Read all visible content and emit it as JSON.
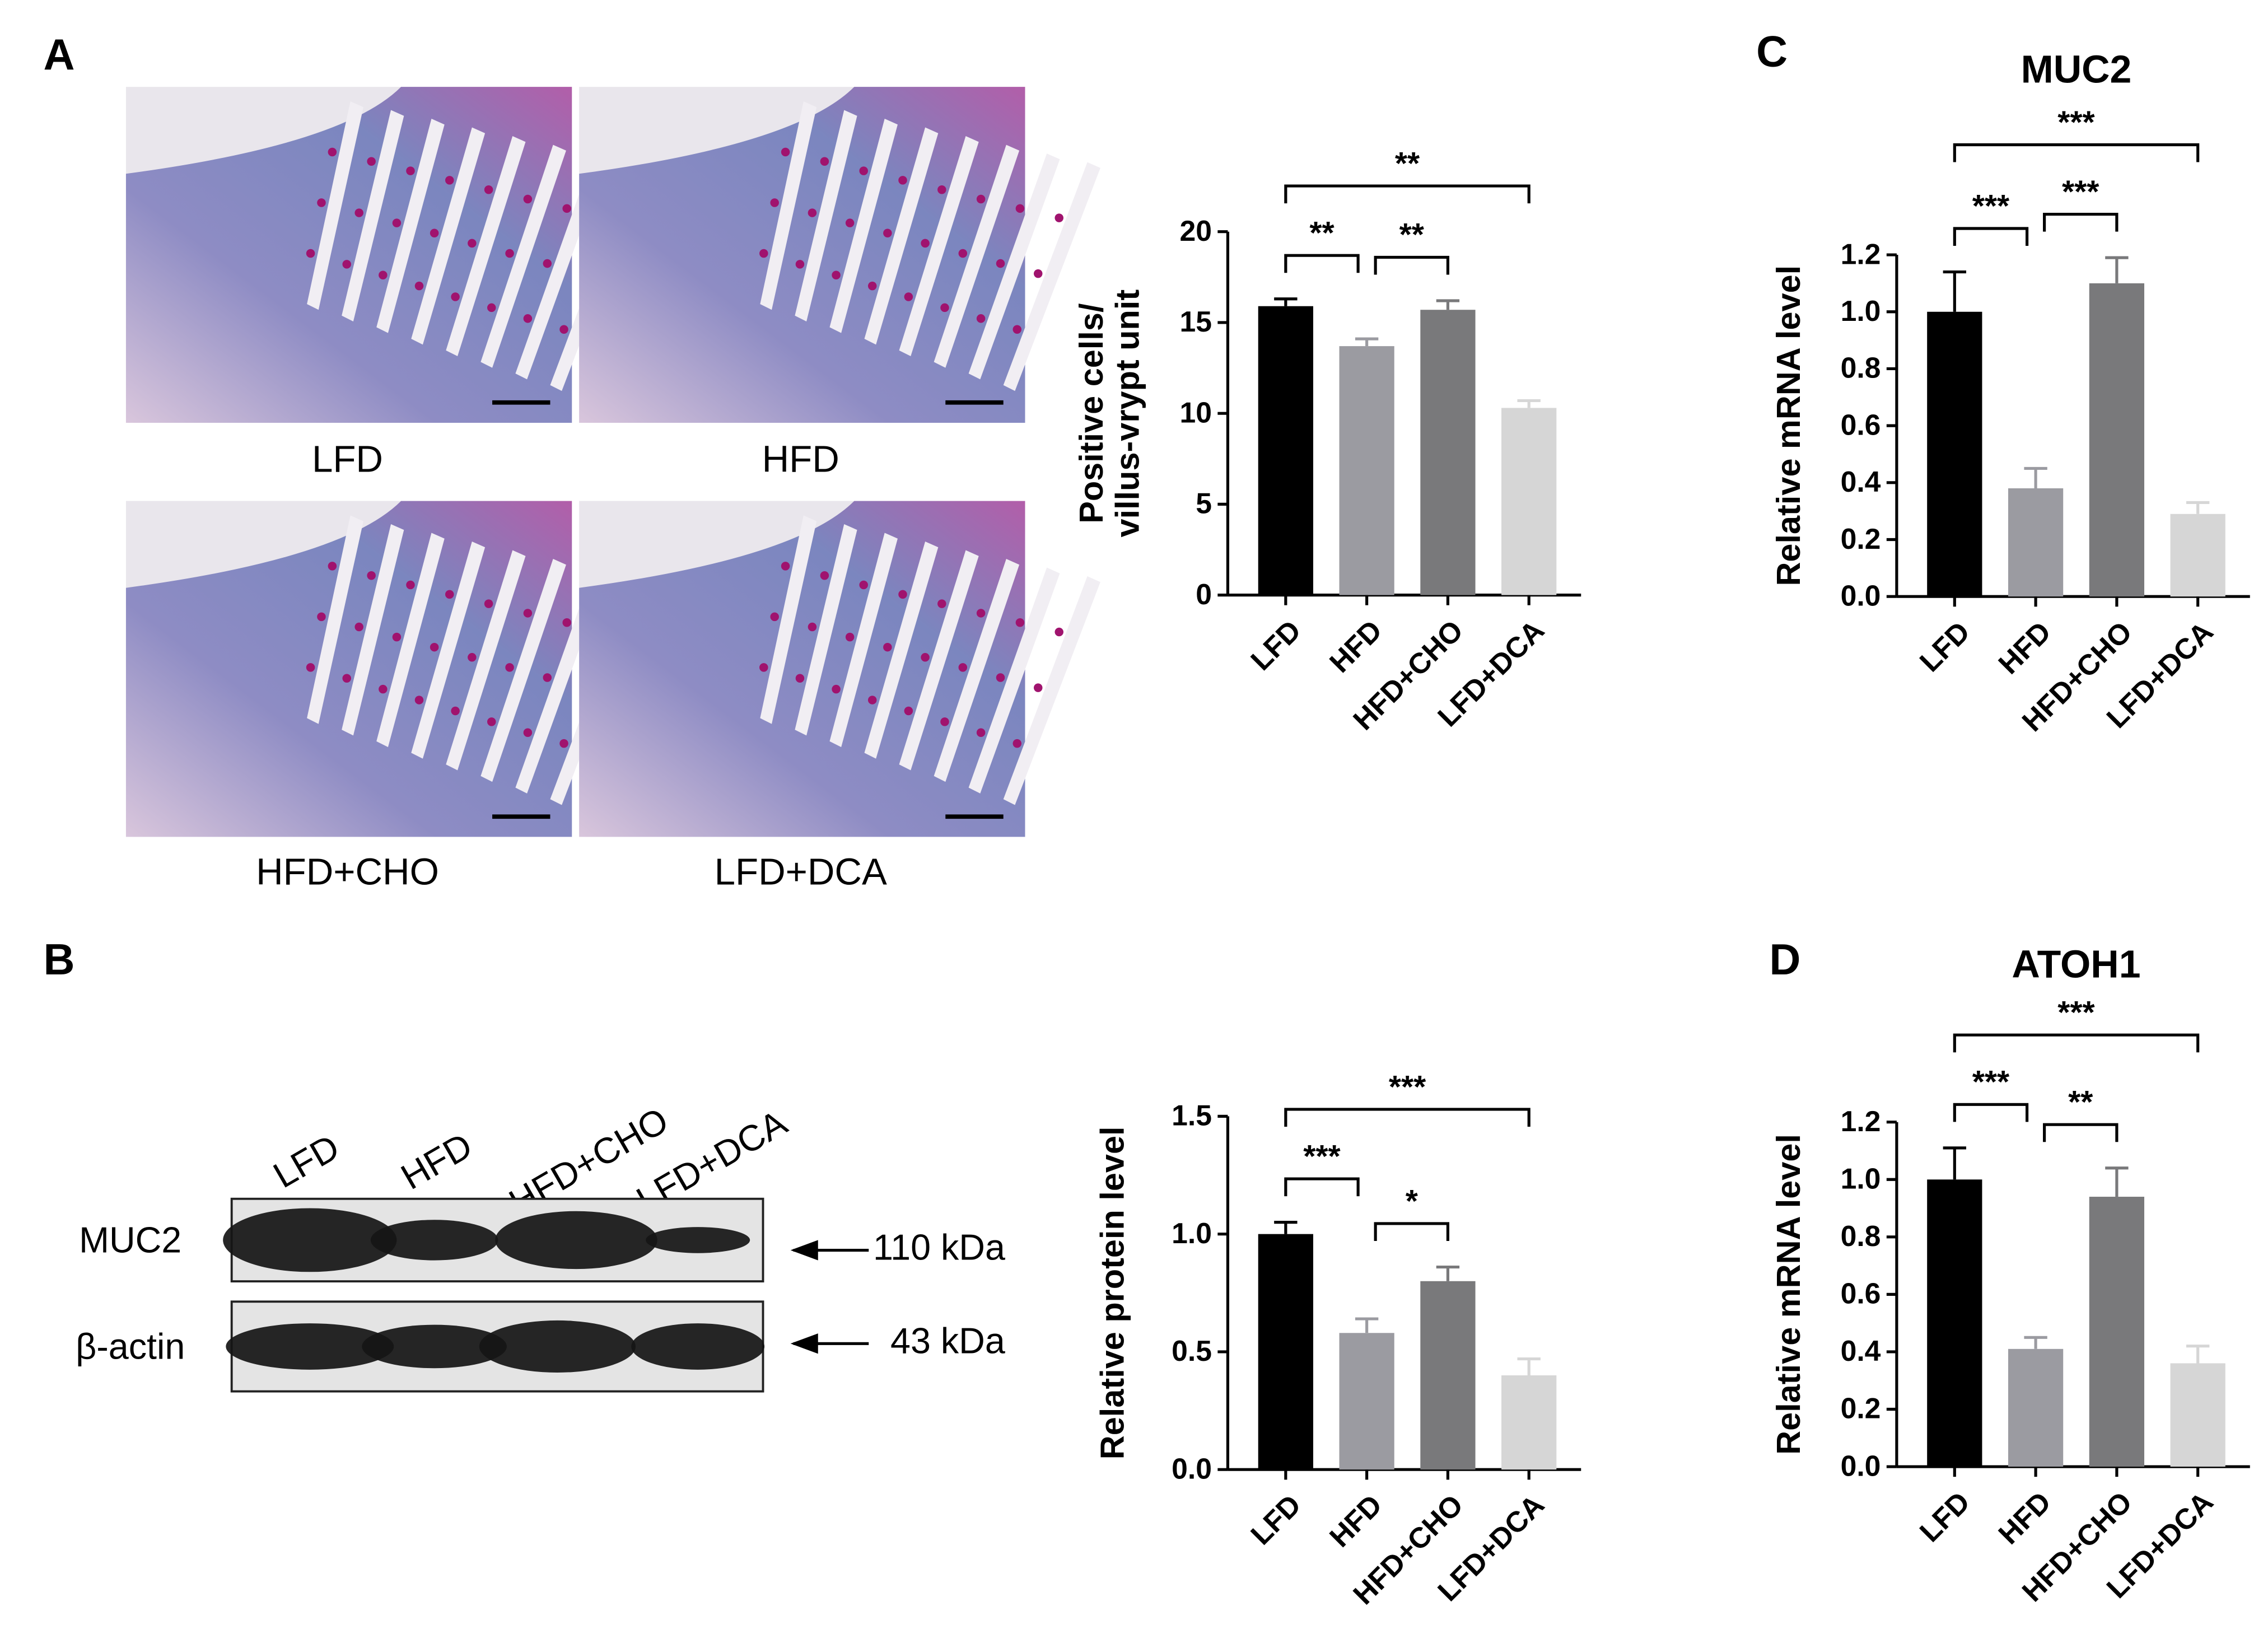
{
  "panel_labels": [
    "A",
    "B",
    "C",
    "D"
  ],
  "histology": {
    "labels": [
      "LFD",
      "HFD",
      "HFD+CHO",
      "LFD+DCA"
    ]
  },
  "blot": {
    "lanes": [
      "LFD",
      "HFD",
      "HFD+CHO",
      "LFD+DCA"
    ],
    "rows": [
      {
        "label": "MUC2",
        "size": "110 kDa"
      },
      {
        "label": "β-actin",
        "size": "43 kDa"
      }
    ]
  },
  "chart_data": [
    {
      "type": "bar",
      "ylabel": [
        "Positive cells/",
        "villus-vrypt unit"
      ],
      "categories": [
        "LFD",
        "HFD",
        "HFD+CHO",
        "LFD+DCA"
      ],
      "values": [
        15.9,
        13.7,
        15.7,
        10.3
      ],
      "errors": [
        0.4,
        0.4,
        0.5,
        0.4
      ],
      "colors": [
        "#000000",
        "#9b9ba1",
        "#79797b",
        "#d6d6d6"
      ],
      "ylim": [
        0,
        20
      ],
      "yticks": [
        0,
        5,
        10,
        15,
        20
      ],
      "significance": [
        {
          "between": [
            "LFD",
            "HFD"
          ],
          "label": "**"
        },
        {
          "between": [
            "HFD",
            "HFD+CHO"
          ],
          "label": "**"
        },
        {
          "between": [
            "LFD",
            "LFD+DCA"
          ],
          "label": "**"
        }
      ]
    },
    {
      "type": "bar",
      "ylabel": [
        "Relative protein level"
      ],
      "categories": [
        "LFD",
        "HFD",
        "HFD+CHO",
        "LFD+DCA"
      ],
      "values": [
        1.0,
        0.58,
        0.8,
        0.4
      ],
      "errors": [
        0.05,
        0.06,
        0.06,
        0.07
      ],
      "colors": [
        "#000000",
        "#9b9ba1",
        "#79797b",
        "#d6d6d6"
      ],
      "ylim": [
        0,
        1.5
      ],
      "yticks": [
        {
          "value": 0,
          "label": "0.0"
        },
        0.5,
        {
          "value": 1,
          "label": "1.0"
        },
        1.5
      ],
      "significance": [
        {
          "between": [
            "LFD",
            "HFD"
          ],
          "label": "***"
        },
        {
          "between": [
            "HFD",
            "HFD+CHO"
          ],
          "label": "*"
        },
        {
          "between": [
            "LFD",
            "LFD+DCA"
          ],
          "label": "***"
        }
      ]
    },
    {
      "type": "bar",
      "title": "MUC2",
      "ylabel": [
        "Relative mRNA level"
      ],
      "categories": [
        "LFD",
        "HFD",
        "HFD+CHO",
        "LFD+DCA"
      ],
      "values": [
        1.0,
        0.38,
        1.1,
        0.29
      ],
      "errors": [
        0.14,
        0.07,
        0.09,
        0.04
      ],
      "colors": [
        "#000000",
        "#9b9ba1",
        "#79797b",
        "#d6d6d6"
      ],
      "ylim": [
        0,
        1.2
      ],
      "yticks": [
        {
          "value": 0,
          "label": "0.0"
        },
        0.2,
        0.4,
        0.6,
        0.8,
        {
          "value": 1,
          "label": "1.0"
        },
        1.2
      ],
      "significance": [
        {
          "between": [
            "LFD",
            "HFD"
          ],
          "label": "***"
        },
        {
          "between": [
            "HFD",
            "HFD+CHO"
          ],
          "label": "***"
        },
        {
          "between": [
            "LFD",
            "LFD+DCA"
          ],
          "label": "***"
        }
      ]
    },
    {
      "type": "bar",
      "title": "ATOH1",
      "ylabel": [
        "Relative mRNA level"
      ],
      "categories": [
        "LFD",
        "HFD",
        "HFD+CHO",
        "LFD+DCA"
      ],
      "values": [
        1.0,
        0.41,
        0.94,
        0.36
      ],
      "errors": [
        0.11,
        0.04,
        0.1,
        0.06
      ],
      "colors": [
        "#000000",
        "#9b9ba1",
        "#79797b",
        "#d6d6d6"
      ],
      "ylim": [
        0,
        1.2
      ],
      "yticks": [
        {
          "value": 0,
          "label": "0.0"
        },
        0.2,
        0.4,
        0.6,
        0.8,
        {
          "value": 1,
          "label": "1.0"
        },
        1.2
      ],
      "significance": [
        {
          "between": [
            "LFD",
            "HFD"
          ],
          "label": "***"
        },
        {
          "between": [
            "HFD",
            "HFD+CHO"
          ],
          "label": "**"
        },
        {
          "between": [
            "LFD",
            "LFD+DCA"
          ],
          "label": "***"
        }
      ]
    }
  ]
}
